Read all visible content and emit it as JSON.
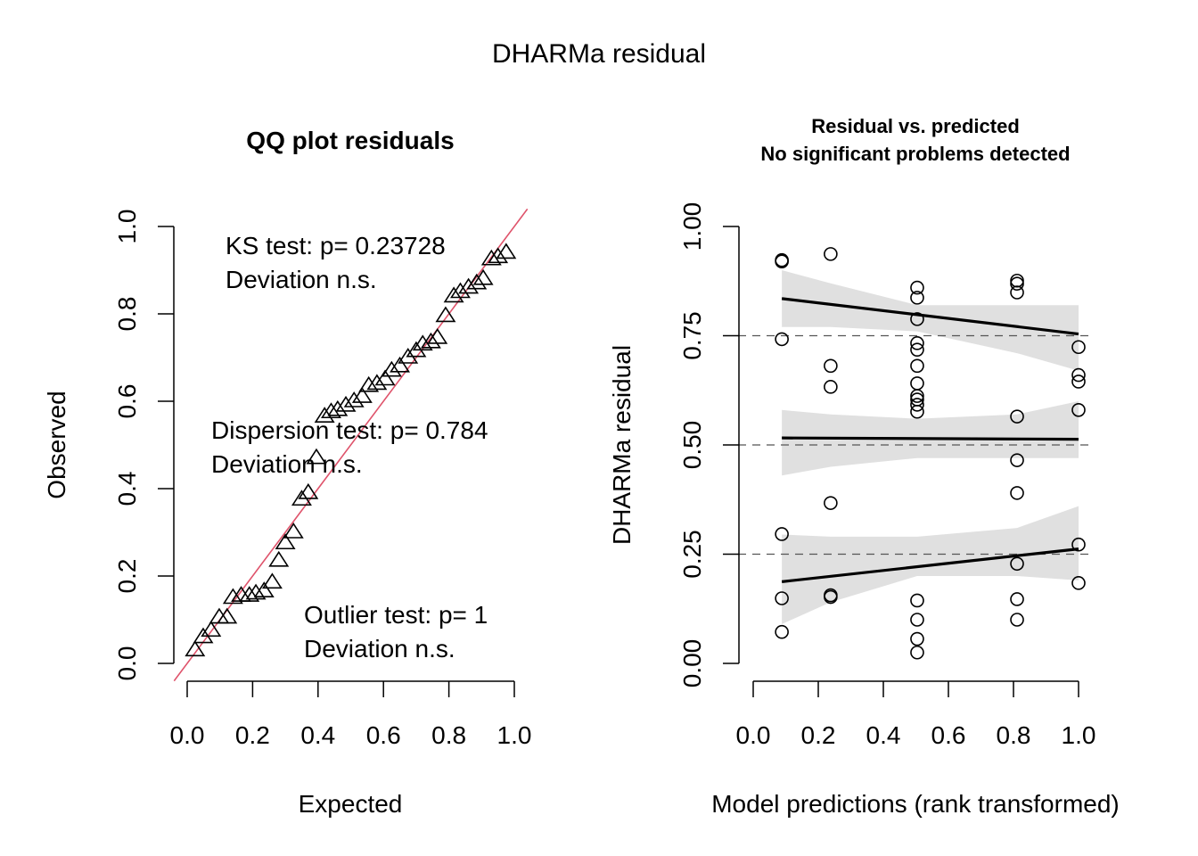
{
  "main_title": "DHARMa residual",
  "chart_data": [
    {
      "type": "scatter",
      "title": "QQ plot residuals",
      "xlabel": "Expected",
      "ylabel": "Observed",
      "xlim": [
        0,
        1
      ],
      "ylim": [
        0,
        1
      ],
      "xticks": [
        "0.0",
        "0.2",
        "0.4",
        "0.6",
        "0.8",
        "1.0"
      ],
      "yticks": [
        "0.0",
        "0.2",
        "0.4",
        "0.6",
        "0.8",
        "1.0"
      ],
      "grid": false,
      "marker": "triangle-open",
      "reference_line": {
        "slope": 1,
        "intercept": 0,
        "color": "#DF536B"
      },
      "annotations": [
        {
          "line1": "KS test: p= 0.23728",
          "line2": "Deviation  n.s."
        },
        {
          "line1": "Dispersion test: p= 0.784",
          "line2": "Deviation  n.s."
        },
        {
          "line1": "Outlier test: p= 1",
          "line2": "Deviation  n.s."
        }
      ],
      "points": [
        [
          0.024,
          0.03
        ],
        [
          0.049,
          0.06
        ],
        [
          0.073,
          0.075
        ],
        [
          0.098,
          0.105
        ],
        [
          0.122,
          0.105
        ],
        [
          0.14,
          0.15
        ],
        [
          0.165,
          0.155
        ],
        [
          0.19,
          0.155
        ],
        [
          0.21,
          0.16
        ],
        [
          0.235,
          0.165
        ],
        [
          0.26,
          0.185
        ],
        [
          0.28,
          0.235
        ],
        [
          0.3,
          0.275
        ],
        [
          0.325,
          0.3
        ],
        [
          0.35,
          0.375
        ],
        [
          0.37,
          0.39
        ],
        [
          0.395,
          0.47
        ],
        [
          0.42,
          0.565
        ],
        [
          0.44,
          0.575
        ],
        [
          0.46,
          0.58
        ],
        [
          0.485,
          0.59
        ],
        [
          0.51,
          0.6
        ],
        [
          0.535,
          0.61
        ],
        [
          0.555,
          0.635
        ],
        [
          0.58,
          0.64
        ],
        [
          0.605,
          0.65
        ],
        [
          0.625,
          0.67
        ],
        [
          0.65,
          0.68
        ],
        [
          0.675,
          0.7
        ],
        [
          0.7,
          0.715
        ],
        [
          0.72,
          0.73
        ],
        [
          0.745,
          0.735
        ],
        [
          0.765,
          0.745
        ],
        [
          0.79,
          0.795
        ],
        [
          0.815,
          0.84
        ],
        [
          0.835,
          0.85
        ],
        [
          0.86,
          0.86
        ],
        [
          0.885,
          0.87
        ],
        [
          0.905,
          0.88
        ],
        [
          0.93,
          0.925
        ],
        [
          0.95,
          0.93
        ],
        [
          0.975,
          0.94
        ]
      ]
    },
    {
      "type": "scatter",
      "title": "Residual vs. predicted",
      "subtitle": "No significant problems detected",
      "xlabel": "Model predictions (rank transformed)",
      "ylabel": "DHARMa residual",
      "xlim": [
        0,
        1
      ],
      "ylim": [
        0,
        1
      ],
      "xticks": [
        "0.0",
        "0.2",
        "0.4",
        "0.6",
        "0.8",
        "1.0"
      ],
      "yticks": [
        "0.00",
        "0.25",
        "0.50",
        "0.75",
        "1.00"
      ],
      "grid": false,
      "marker": "circle-open",
      "reference_lines_y": [
        0.25,
        0.5,
        0.75
      ],
      "points": [
        [
          0.088,
          0.923
        ],
        [
          0.088,
          0.92
        ],
        [
          0.088,
          0.742
        ],
        [
          0.088,
          0.296
        ],
        [
          0.088,
          0.149
        ],
        [
          0.088,
          0.072
        ],
        [
          0.238,
          0.937
        ],
        [
          0.238,
          0.681
        ],
        [
          0.238,
          0.633
        ],
        [
          0.238,
          0.367
        ],
        [
          0.238,
          0.156
        ],
        [
          0.238,
          0.152
        ],
        [
          0.504,
          0.86
        ],
        [
          0.504,
          0.837
        ],
        [
          0.504,
          0.788
        ],
        [
          0.504,
          0.733
        ],
        [
          0.504,
          0.718
        ],
        [
          0.504,
          0.681
        ],
        [
          0.504,
          0.641
        ],
        [
          0.504,
          0.612
        ],
        [
          0.504,
          0.604
        ],
        [
          0.504,
          0.592
        ],
        [
          0.504,
          0.576
        ],
        [
          0.504,
          0.144
        ],
        [
          0.504,
          0.1
        ],
        [
          0.504,
          0.056
        ],
        [
          0.504,
          0.025
        ],
        [
          0.811,
          0.876
        ],
        [
          0.811,
          0.869
        ],
        [
          0.811,
          0.849
        ],
        [
          0.811,
          0.565
        ],
        [
          0.811,
          0.465
        ],
        [
          0.811,
          0.39
        ],
        [
          0.811,
          0.228
        ],
        [
          0.811,
          0.147
        ],
        [
          0.811,
          0.1
        ],
        [
          1.0,
          0.724
        ],
        [
          1.0,
          0.66
        ],
        [
          1.0,
          0.645
        ],
        [
          1.0,
          0.58
        ],
        [
          1.0,
          0.272
        ],
        [
          1.0,
          0.184
        ]
      ],
      "quantile_fits": [
        {
          "quantile": 0.75,
          "x": [
            0.088,
            1.0
          ],
          "y": [
            0.835,
            0.754
          ],
          "band": {
            "x": [
              0.088,
              0.238,
              0.504,
              0.811,
              1.0
            ],
            "upper": [
              0.9,
              0.87,
              0.82,
              0.82,
              0.82
            ],
            "lower": [
              0.77,
              0.77,
              0.76,
              0.71,
              0.67
            ]
          }
        },
        {
          "quantile": 0.5,
          "x": [
            0.088,
            1.0
          ],
          "y": [
            0.516,
            0.513
          ],
          "band": {
            "x": [
              0.088,
              0.238,
              0.504,
              0.811,
              1.0
            ],
            "upper": [
              0.58,
              0.57,
              0.56,
              0.57,
              0.6
            ],
            "lower": [
              0.43,
              0.45,
              0.47,
              0.47,
              0.47
            ]
          }
        },
        {
          "quantile": 0.25,
          "x": [
            0.088,
            1.0
          ],
          "y": [
            0.187,
            0.262
          ],
          "band": {
            "x": [
              0.088,
              0.238,
              0.504,
              0.811,
              1.0
            ],
            "upper": [
              0.295,
              0.29,
              0.29,
              0.31,
              0.36
            ],
            "lower": [
              0.09,
              0.14,
              0.2,
              0.2,
              0.19
            ]
          }
        }
      ],
      "line_color": "#000000",
      "band_color": "#E0E0E0"
    }
  ]
}
